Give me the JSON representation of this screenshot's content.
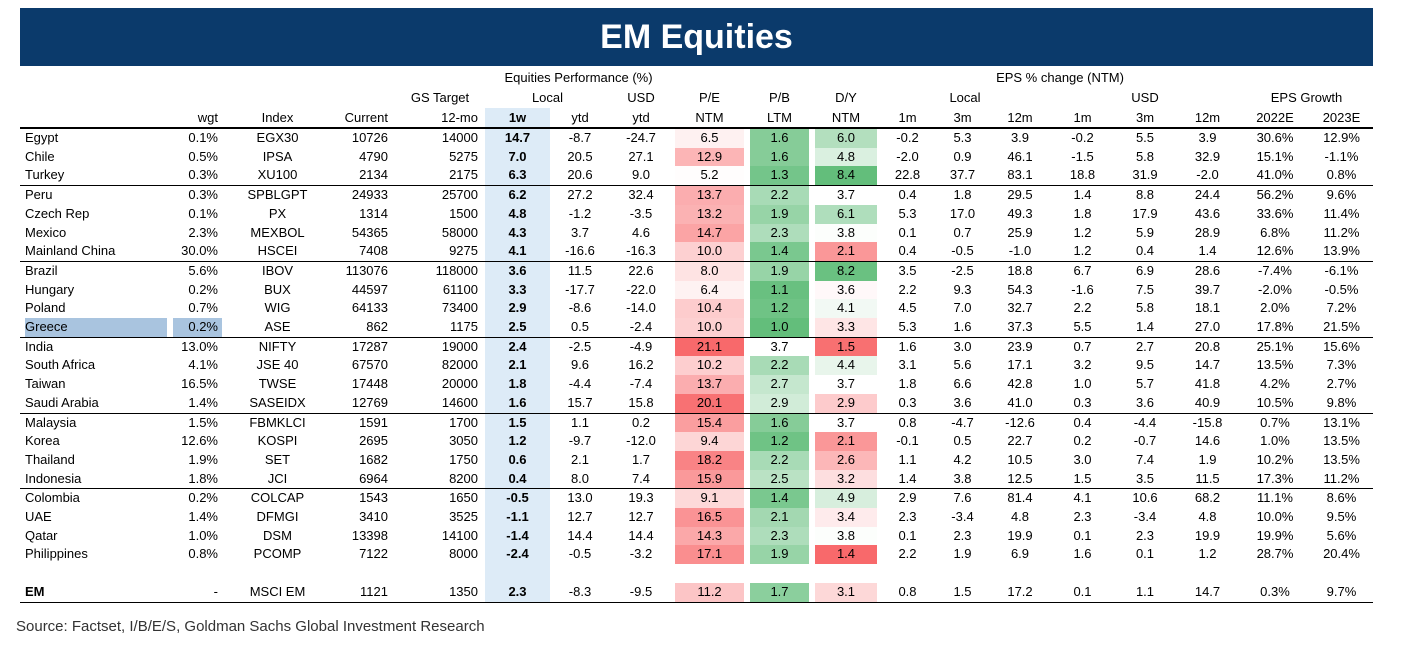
{
  "title": "EM Equities",
  "table": {
    "header": {
      "top": [
        "Equities Performance (%)",
        "EPS % change (NTM)"
      ],
      "middle": [
        "GS Target",
        "Local",
        "USD",
        "P/E",
        "P/B",
        "D/Y",
        "Local",
        "USD",
        "EPS Growth"
      ],
      "columns": [
        "wgt",
        "Index",
        "Current",
        "12-mo",
        "1w",
        "ytd",
        "ytd",
        "NTM",
        "LTM",
        "NTM",
        "1m",
        "3m",
        "12m",
        "1m",
        "3m",
        "12m",
        "2022E",
        "2023E"
      ]
    },
    "groups": [
      [
        [
          "Egypt",
          "0.1%",
          "EGX30",
          "10726",
          "14000",
          "14.7",
          "-8.7",
          "-24.7",
          "6.5",
          "1.6",
          "6.0",
          "-0.2",
          "5.3",
          "3.9",
          "-0.2",
          "5.5",
          "3.9",
          "30.6%",
          "12.9%"
        ],
        [
          "Chile",
          "0.5%",
          "IPSA",
          "4790",
          "5275",
          "7.0",
          "20.5",
          "27.1",
          "12.9",
          "1.6",
          "4.8",
          "-2.0",
          "0.9",
          "46.1",
          "-1.5",
          "5.8",
          "32.9",
          "15.1%",
          "-1.1%"
        ],
        [
          "Turkey",
          "0.3%",
          "XU100",
          "2134",
          "2175",
          "6.3",
          "20.6",
          "9.0",
          "5.2",
          "1.3",
          "8.4",
          "22.8",
          "37.7",
          "83.1",
          "18.8",
          "31.9",
          "-2.0",
          "41.0%",
          "0.8%"
        ]
      ],
      [
        [
          "Peru",
          "0.3%",
          "SPBLGPT",
          "24933",
          "25700",
          "6.2",
          "27.2",
          "32.4",
          "13.7",
          "2.2",
          "3.7",
          "0.4",
          "1.8",
          "29.5",
          "1.4",
          "8.8",
          "24.4",
          "56.2%",
          "9.6%"
        ],
        [
          "Czech Rep",
          "0.1%",
          "PX",
          "1314",
          "1500",
          "4.8",
          "-1.2",
          "-3.5",
          "13.2",
          "1.9",
          "6.1",
          "5.3",
          "17.0",
          "49.3",
          "1.8",
          "17.9",
          "43.6",
          "33.6%",
          "11.4%"
        ],
        [
          "Mexico",
          "2.3%",
          "MEXBOL",
          "54365",
          "58000",
          "4.3",
          "3.7",
          "4.6",
          "14.7",
          "2.3",
          "3.8",
          "0.1",
          "0.7",
          "25.9",
          "1.2",
          "5.9",
          "28.9",
          "6.8%",
          "11.2%"
        ],
        [
          "Mainland China",
          "30.0%",
          "HSCEI",
          "7408",
          "9275",
          "4.1",
          "-16.6",
          "-16.3",
          "10.0",
          "1.4",
          "2.1",
          "0.4",
          "-0.5",
          "-1.0",
          "1.2",
          "0.4",
          "1.4",
          "12.6%",
          "13.9%"
        ]
      ],
      [
        [
          "Brazil",
          "5.6%",
          "IBOV",
          "113076",
          "118000",
          "3.6",
          "11.5",
          "22.6",
          "8.0",
          "1.9",
          "8.2",
          "3.5",
          "-2.5",
          "18.8",
          "6.7",
          "6.9",
          "28.6",
          "-7.4%",
          "-6.1%"
        ],
        [
          "Hungary",
          "0.2%",
          "BUX",
          "44597",
          "61100",
          "3.3",
          "-17.7",
          "-22.0",
          "6.4",
          "1.1",
          "3.6",
          "2.2",
          "9.3",
          "54.3",
          "-1.6",
          "7.5",
          "39.7",
          "-2.0%",
          "-0.5%"
        ],
        [
          "Poland",
          "0.7%",
          "WIG",
          "64133",
          "73400",
          "2.9",
          "-8.6",
          "-14.0",
          "10.4",
          "1.2",
          "4.1",
          "4.5",
          "7.0",
          "32.7",
          "2.2",
          "5.8",
          "18.1",
          "2.0%",
          "7.2%"
        ],
        [
          "Greece",
          "0.2%",
          "ASE",
          "862",
          "1175",
          "2.5",
          "0.5",
          "-2.4",
          "10.0",
          "1.0",
          "3.3",
          "5.3",
          "1.6",
          "37.3",
          "5.5",
          "1.4",
          "27.0",
          "17.8%",
          "21.5%"
        ]
      ],
      [
        [
          "India",
          "13.0%",
          "NIFTY",
          "17287",
          "19000",
          "2.4",
          "-2.5",
          "-4.9",
          "21.1",
          "3.7",
          "1.5",
          "1.6",
          "3.0",
          "23.9",
          "0.7",
          "2.7",
          "20.8",
          "25.1%",
          "15.6%"
        ],
        [
          "South Africa",
          "4.1%",
          "JSE 40",
          "67570",
          "82000",
          "2.1",
          "9.6",
          "16.2",
          "10.2",
          "2.2",
          "4.4",
          "3.1",
          "5.6",
          "17.1",
          "3.2",
          "9.5",
          "14.7",
          "13.5%",
          "7.3%"
        ],
        [
          "Taiwan",
          "16.5%",
          "TWSE",
          "17448",
          "20000",
          "1.8",
          "-4.4",
          "-7.4",
          "13.7",
          "2.7",
          "3.7",
          "1.8",
          "6.6",
          "42.8",
          "1.0",
          "5.7",
          "41.8",
          "4.2%",
          "2.7%"
        ],
        [
          "Saudi Arabia",
          "1.4%",
          "SASEIDX",
          "12769",
          "14600",
          "1.6",
          "15.7",
          "15.8",
          "20.1",
          "2.9",
          "2.9",
          "0.3",
          "3.6",
          "41.0",
          "0.3",
          "3.6",
          "40.9",
          "10.5%",
          "9.8%"
        ]
      ],
      [
        [
          "Malaysia",
          "1.5%",
          "FBMKLCI",
          "1591",
          "1700",
          "1.5",
          "1.1",
          "0.2",
          "15.4",
          "1.6",
          "3.7",
          "0.8",
          "-4.7",
          "-12.6",
          "0.4",
          "-4.4",
          "-15.8",
          "0.7%",
          "13.1%"
        ],
        [
          "Korea",
          "12.6%",
          "KOSPI",
          "2695",
          "3050",
          "1.2",
          "-9.7",
          "-12.0",
          "9.4",
          "1.2",
          "2.1",
          "-0.1",
          "0.5",
          "22.7",
          "0.2",
          "-0.7",
          "14.6",
          "1.0%",
          "13.5%"
        ],
        [
          "Thailand",
          "1.9%",
          "SET",
          "1682",
          "1750",
          "0.6",
          "2.1",
          "1.7",
          "18.2",
          "2.2",
          "2.6",
          "1.1",
          "4.2",
          "10.5",
          "3.0",
          "7.4",
          "1.9",
          "10.2%",
          "13.5%"
        ],
        [
          "Indonesia",
          "1.8%",
          "JCI",
          "6964",
          "8200",
          "0.4",
          "8.0",
          "7.4",
          "15.9",
          "2.5",
          "3.2",
          "1.4",
          "3.8",
          "12.5",
          "1.5",
          "3.5",
          "11.5",
          "17.3%",
          "11.2%"
        ]
      ],
      [
        [
          "Colombia",
          "0.2%",
          "COLCAP",
          "1543",
          "1650",
          "-0.5",
          "13.0",
          "19.3",
          "9.1",
          "1.4",
          "4.9",
          "2.9",
          "7.6",
          "81.4",
          "4.1",
          "10.6",
          "68.2",
          "11.1%",
          "8.6%"
        ],
        [
          "UAE",
          "1.4%",
          "DFMGI",
          "3410",
          "3525",
          "-1.1",
          "12.7",
          "12.7",
          "16.5",
          "2.1",
          "3.4",
          "2.3",
          "-3.4",
          "4.8",
          "2.3",
          "-3.4",
          "4.8",
          "10.0%",
          "9.5%"
        ],
        [
          "Qatar",
          "1.0%",
          "DSM",
          "13398",
          "14100",
          "-1.4",
          "14.4",
          "14.4",
          "14.3",
          "2.3",
          "3.8",
          "0.1",
          "2.3",
          "19.9",
          "0.1",
          "2.3",
          "19.9",
          "19.9%",
          "5.6%"
        ],
        [
          "Philippines",
          "0.8%",
          "PCOMP",
          "7122",
          "8000",
          "-2.4",
          "-0.5",
          "-3.2",
          "17.1",
          "1.9",
          "1.4",
          "2.2",
          "1.9",
          "6.9",
          "1.6",
          "0.1",
          "1.2",
          "28.7%",
          "20.4%"
        ]
      ]
    ],
    "total": [
      "EM",
      "-",
      "MSCI EM",
      "1121",
      "1350",
      "2.3",
      "-8.3",
      "-9.5",
      "11.2",
      "1.7",
      "3.1",
      "0.8",
      "1.5",
      "17.2",
      "0.1",
      "1.1",
      "14.7",
      "0.3%",
      "9.7%"
    ]
  },
  "source": "Source: Factset, I/B/E/S, Goldman Sachs Global Investment Research"
}
